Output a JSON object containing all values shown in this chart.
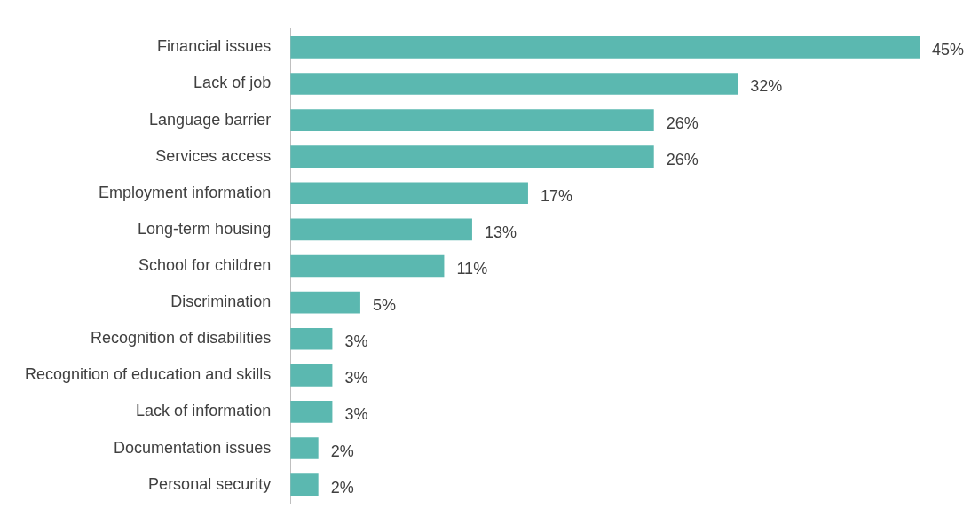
{
  "chart_data": {
    "type": "bar",
    "orientation": "horizontal",
    "categories": [
      "Financial issues",
      "Lack of job",
      "Language barrier",
      "Services access",
      "Employment information",
      "Long-term housing",
      "School for children",
      "Discrimination",
      "Recognition of disabilities",
      "Recognition of education and skills",
      "Lack of information",
      "Documentation issues",
      "Personal security"
    ],
    "values": [
      45,
      32,
      26,
      26,
      17,
      13,
      11,
      5,
      3,
      3,
      3,
      2,
      2
    ],
    "value_labels": [
      "45%",
      "32%",
      "26%",
      "26%",
      "17%",
      "13%",
      "11%",
      "5%",
      "3%",
      "3%",
      "3%",
      "2%",
      "2%"
    ],
    "color": "#5bb8b0"
  }
}
